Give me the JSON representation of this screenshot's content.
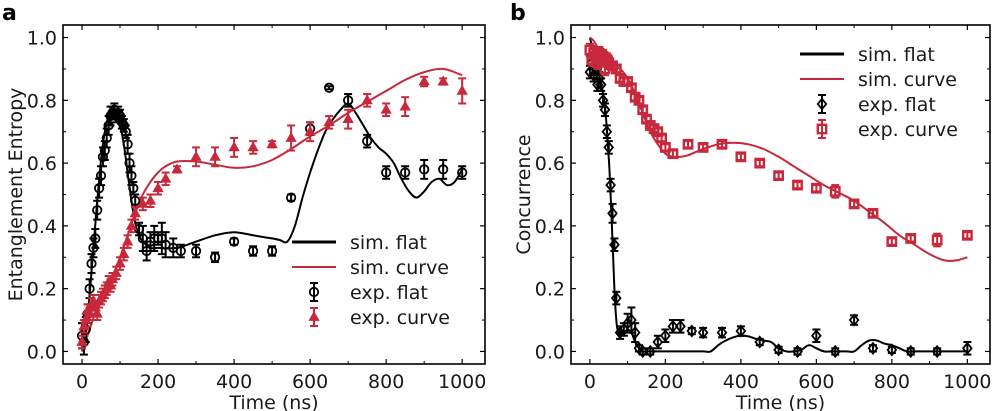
{
  "colors": {
    "flat": "#000000",
    "curve": "#c8283c"
  },
  "chart_data": [
    {
      "type": "line",
      "panel": "a",
      "title": "",
      "xlabel": "Time (ns)",
      "ylabel": "Entanglement Entropy",
      "xlim": [
        -50,
        1060
      ],
      "ylim": [
        -0.04,
        1.04
      ],
      "xticks": [
        0,
        200,
        400,
        600,
        800,
        1000
      ],
      "xtick_labels": [
        "0",
        "200",
        "400",
        "600",
        "800",
        "1000"
      ],
      "yticks": [
        0.0,
        0.2,
        0.4,
        0.6,
        0.8,
        1.0
      ],
      "ytick_labels": [
        "0.0",
        "0.2",
        "0.4",
        "0.6",
        "0.8",
        "1.0"
      ],
      "grid": false,
      "legend_position": "bottom-right",
      "legend": [
        "sim. flat",
        "sim. curve",
        "exp. flat",
        "exp. curve"
      ],
      "series": [
        {
          "name": "sim. flat",
          "kind": "line",
          "color_key": "flat",
          "x": [
            0,
            10,
            20,
            30,
            40,
            50,
            60,
            70,
            80,
            90,
            100,
            110,
            120,
            130,
            140,
            150,
            160,
            180,
            200,
            250,
            300,
            350,
            400,
            450,
            500,
            520,
            540,
            560,
            580,
            600,
            620,
            640,
            660,
            680,
            700,
            720,
            740,
            760,
            780,
            800,
            820,
            840,
            860,
            880,
            900,
            920,
            940,
            960,
            980,
            1000
          ],
          "y": [
            0.0,
            0.06,
            0.18,
            0.33,
            0.48,
            0.61,
            0.7,
            0.75,
            0.76,
            0.75,
            0.72,
            0.66,
            0.57,
            0.48,
            0.41,
            0.37,
            0.35,
            0.33,
            0.33,
            0.33,
            0.35,
            0.37,
            0.38,
            0.37,
            0.36,
            0.355,
            0.35,
            0.4,
            0.49,
            0.57,
            0.64,
            0.7,
            0.74,
            0.77,
            0.79,
            0.76,
            0.72,
            0.68,
            0.65,
            0.63,
            0.6,
            0.55,
            0.51,
            0.49,
            0.51,
            0.54,
            0.55,
            0.53,
            0.54,
            0.58
          ]
        },
        {
          "name": "sim. curve",
          "kind": "line",
          "color_key": "curve",
          "x": [
            0,
            20,
            40,
            60,
            80,
            100,
            120,
            140,
            160,
            180,
            200,
            220,
            250,
            300,
            350,
            400,
            450,
            500,
            550,
            600,
            650,
            700,
            750,
            800,
            850,
            900,
            950,
            1000
          ],
          "y": [
            0.0,
            0.07,
            0.14,
            0.19,
            0.24,
            0.3,
            0.37,
            0.44,
            0.5,
            0.54,
            0.57,
            0.59,
            0.605,
            0.605,
            0.595,
            0.585,
            0.59,
            0.61,
            0.645,
            0.685,
            0.72,
            0.76,
            0.795,
            0.83,
            0.865,
            0.89,
            0.9,
            0.88
          ]
        },
        {
          "name": "exp. flat",
          "kind": "points",
          "marker": "circle",
          "color_key": "flat",
          "x": [
            0,
            5,
            10,
            15,
            20,
            25,
            30,
            35,
            40,
            45,
            50,
            55,
            60,
            65,
            70,
            75,
            80,
            85,
            90,
            95,
            100,
            105,
            110,
            115,
            120,
            125,
            130,
            135,
            140,
            150,
            160,
            170,
            180,
            190,
            200,
            210,
            220,
            240,
            260,
            300,
            350,
            400,
            450,
            500,
            550,
            600,
            650,
            700,
            750,
            800,
            850,
            900,
            950,
            1000
          ],
          "y": [
            0.05,
            0.03,
            0.07,
            0.12,
            0.2,
            0.28,
            0.33,
            0.36,
            0.45,
            0.52,
            0.56,
            0.62,
            0.64,
            0.68,
            0.72,
            0.75,
            0.76,
            0.77,
            0.75,
            0.76,
            0.75,
            0.73,
            0.72,
            0.7,
            0.66,
            0.6,
            0.56,
            0.52,
            0.48,
            0.39,
            0.36,
            0.32,
            0.35,
            0.36,
            0.36,
            0.36,
            0.34,
            0.33,
            0.32,
            0.32,
            0.3,
            0.35,
            0.32,
            0.32,
            0.49,
            0.71,
            0.84,
            0.8,
            0.67,
            0.57,
            0.57,
            0.58,
            0.58,
            0.57
          ],
          "yerr": [
            0.04,
            0.04,
            0.04,
            0.03,
            0.03,
            0.03,
            0.03,
            0.03,
            0.03,
            0.03,
            0.03,
            0.03,
            0.03,
            0.03,
            0.03,
            0.03,
            0.02,
            0.02,
            0.02,
            0.02,
            0.02,
            0.02,
            0.02,
            0.02,
            0.03,
            0.03,
            0.03,
            0.02,
            0.02,
            0.02,
            0.04,
            0.03,
            0.03,
            0.04,
            0.02,
            0.05,
            0.04,
            0.03,
            0.02,
            0.02,
            0.015,
            0.01,
            0.015,
            0.015,
            0.01,
            0.02,
            0.005,
            0.02,
            0.02,
            0.02,
            0.02,
            0.03,
            0.03,
            0.02
          ]
        },
        {
          "name": "exp. curve",
          "kind": "points",
          "marker": "triangle",
          "color_key": "curve",
          "x": [
            0,
            5,
            10,
            15,
            20,
            25,
            30,
            35,
            40,
            45,
            50,
            55,
            60,
            65,
            70,
            75,
            80,
            90,
            100,
            110,
            120,
            130,
            140,
            160,
            180,
            200,
            220,
            250,
            300,
            350,
            400,
            450,
            500,
            550,
            600,
            650,
            700,
            750,
            800,
            850,
            900,
            950,
            1000
          ],
          "y": [
            0.03,
            0.08,
            0.1,
            0.13,
            0.12,
            0.15,
            0.16,
            0.14,
            0.12,
            0.16,
            0.17,
            0.18,
            0.19,
            0.2,
            0.22,
            0.21,
            0.23,
            0.25,
            0.28,
            0.31,
            0.35,
            0.4,
            0.44,
            0.47,
            0.48,
            0.52,
            0.55,
            0.58,
            0.62,
            0.62,
            0.65,
            0.65,
            0.66,
            0.68,
            0.7,
            0.73,
            0.74,
            0.8,
            0.77,
            0.78,
            0.86,
            0.86,
            0.83
          ],
          "yerr": [
            0.02,
            0.02,
            0.02,
            0.02,
            0.02,
            0.02,
            0.02,
            0.02,
            0.02,
            0.02,
            0.02,
            0.02,
            0.02,
            0.02,
            0.02,
            0.02,
            0.02,
            0.02,
            0.02,
            0.02,
            0.02,
            0.02,
            0.02,
            0.02,
            0.02,
            0.02,
            0.02,
            0.01,
            0.03,
            0.03,
            0.03,
            0.02,
            0.01,
            0.04,
            0.03,
            0.02,
            0.03,
            0.02,
            0.02,
            0.03,
            0.015,
            0.01,
            0.04
          ]
        }
      ]
    },
    {
      "type": "line",
      "panel": "b",
      "title": "",
      "xlabel": "Time (ns)",
      "ylabel": "Concurrence",
      "xlim": [
        -50,
        1060
      ],
      "ylim": [
        -0.04,
        1.04
      ],
      "xticks": [
        0,
        200,
        400,
        600,
        800,
        1000
      ],
      "xtick_labels": [
        "0",
        "200",
        "400",
        "600",
        "800",
        "1000"
      ],
      "yticks": [
        0.0,
        0.2,
        0.4,
        0.6,
        0.8,
        1.0
      ],
      "ytick_labels": [
        "0.0",
        "0.2",
        "0.4",
        "0.6",
        "0.8",
        "1.0"
      ],
      "grid": false,
      "legend_position": "top-right",
      "legend": [
        "sim. flat",
        "sim. curve",
        "exp. flat",
        "exp. curve"
      ],
      "series": [
        {
          "name": "sim. flat",
          "kind": "line",
          "color_key": "flat",
          "x": [
            0,
            10,
            20,
            30,
            40,
            50,
            55,
            60,
            65,
            70,
            75,
            80,
            90,
            100,
            110,
            120,
            130,
            140,
            150,
            160,
            180,
            200,
            250,
            300,
            320,
            340,
            360,
            380,
            400,
            420,
            440,
            460,
            480,
            500,
            520,
            540,
            560,
            580,
            600,
            620,
            640,
            660,
            680,
            700,
            720,
            740,
            760,
            780,
            800,
            820,
            840,
            860,
            880,
            900,
            950,
            1000
          ],
          "y": [
            1.0,
            0.95,
            0.9,
            0.85,
            0.78,
            0.62,
            0.5,
            0.35,
            0.2,
            0.1,
            0.06,
            0.055,
            0.06,
            0.07,
            0.06,
            0.03,
            0.01,
            0.0,
            0.0,
            0.0,
            0.0,
            0.0,
            0.0,
            0.0,
            0.0,
            0.02,
            0.035,
            0.045,
            0.05,
            0.048,
            0.04,
            0.035,
            0.03,
            0.01,
            0.0,
            0.0,
            0.005,
            0.02,
            0.01,
            0.0,
            0.0,
            0.0,
            0.0,
            0.0,
            0.02,
            0.035,
            0.035,
            0.025,
            0.02,
            0.01,
            0.0,
            0.0,
            0.0,
            0.0,
            0.0,
            0.0
          ]
        },
        {
          "name": "sim. curve",
          "kind": "line",
          "color_key": "curve",
          "x": [
            0,
            10,
            20,
            30,
            40,
            60,
            80,
            100,
            120,
            140,
            160,
            180,
            200,
            220,
            240,
            260,
            280,
            300,
            340,
            380,
            420,
            460,
            500,
            540,
            580,
            620,
            660,
            700,
            740,
            780,
            820,
            860,
            900,
            940,
            970,
            1000
          ],
          "y": [
            1.0,
            0.99,
            0.97,
            0.95,
            0.93,
            0.91,
            0.9,
            0.87,
            0.82,
            0.76,
            0.7,
            0.66,
            0.63,
            0.62,
            0.62,
            0.625,
            0.635,
            0.645,
            0.66,
            0.665,
            0.66,
            0.645,
            0.62,
            0.59,
            0.56,
            0.53,
            0.505,
            0.48,
            0.445,
            0.41,
            0.37,
            0.34,
            0.31,
            0.29,
            0.29,
            0.3
          ]
        },
        {
          "name": "exp. flat",
          "kind": "points",
          "marker": "diamond",
          "color_key": "flat",
          "x": [
            0,
            5,
            10,
            15,
            20,
            25,
            30,
            35,
            40,
            45,
            50,
            55,
            60,
            65,
            70,
            80,
            90,
            100,
            110,
            120,
            130,
            140,
            160,
            180,
            200,
            220,
            240,
            270,
            300,
            350,
            400,
            450,
            500,
            550,
            600,
            650,
            700,
            750,
            800,
            850,
            920,
            1000
          ],
          "y": [
            0.89,
            0.92,
            0.88,
            0.9,
            0.85,
            0.87,
            0.85,
            0.8,
            0.77,
            0.7,
            0.65,
            0.53,
            0.44,
            0.34,
            0.17,
            0.06,
            0.07,
            0.09,
            0.1,
            0.06,
            0.01,
            0.0,
            0.0,
            0.03,
            0.05,
            0.08,
            0.08,
            0.065,
            0.06,
            0.06,
            0.065,
            0.03,
            0.005,
            0.0,
            0.05,
            0.0,
            0.1,
            0.01,
            0.005,
            0.0,
            0.0,
            0.01
          ],
          "yerr": [
            0.02,
            0.02,
            0.02,
            0.02,
            0.02,
            0.02,
            0.02,
            0.02,
            0.02,
            0.02,
            0.02,
            0.02,
            0.03,
            0.02,
            0.02,
            0.02,
            0.02,
            0.03,
            0.04,
            0.03,
            0.01,
            0.01,
            0.01,
            0.02,
            0.02,
            0.02,
            0.02,
            0.01,
            0.015,
            0.015,
            0.015,
            0.01,
            0.01,
            0.01,
            0.02,
            0.01,
            0.015,
            0.01,
            0.01,
            0.01,
            0.01,
            0.02
          ]
        },
        {
          "name": "exp. curve",
          "kind": "points",
          "marker": "square",
          "color_key": "curve",
          "x": [
            0,
            5,
            10,
            15,
            20,
            25,
            30,
            35,
            40,
            45,
            50,
            60,
            70,
            80,
            90,
            100,
            110,
            120,
            130,
            140,
            150,
            160,
            170,
            180,
            190,
            200,
            220,
            260,
            300,
            350,
            400,
            450,
            500,
            550,
            600,
            650,
            700,
            750,
            800,
            850,
            920,
            1000
          ],
          "y": [
            0.96,
            0.93,
            0.95,
            0.94,
            0.92,
            0.95,
            0.93,
            0.94,
            0.9,
            0.93,
            0.92,
            0.91,
            0.9,
            0.87,
            0.86,
            0.86,
            0.84,
            0.81,
            0.8,
            0.77,
            0.74,
            0.72,
            0.71,
            0.7,
            0.68,
            0.65,
            0.63,
            0.66,
            0.65,
            0.66,
            0.62,
            0.6,
            0.56,
            0.53,
            0.52,
            0.51,
            0.47,
            0.44,
            0.35,
            0.36,
            0.355,
            0.37
          ],
          "yerr": [
            0.02,
            0.02,
            0.02,
            0.02,
            0.02,
            0.02,
            0.02,
            0.02,
            0.02,
            0.02,
            0.02,
            0.01,
            0.01,
            0.01,
            0.01,
            0.01,
            0.01,
            0.01,
            0.01,
            0.01,
            0.01,
            0.01,
            0.01,
            0.01,
            0.01,
            0.01,
            0.01,
            0.01,
            0.01,
            0.01,
            0.01,
            0.01,
            0.01,
            0.01,
            0.01,
            0.02,
            0.01,
            0.01,
            0.01,
            0.01,
            0.02,
            0.01
          ]
        }
      ]
    }
  ]
}
